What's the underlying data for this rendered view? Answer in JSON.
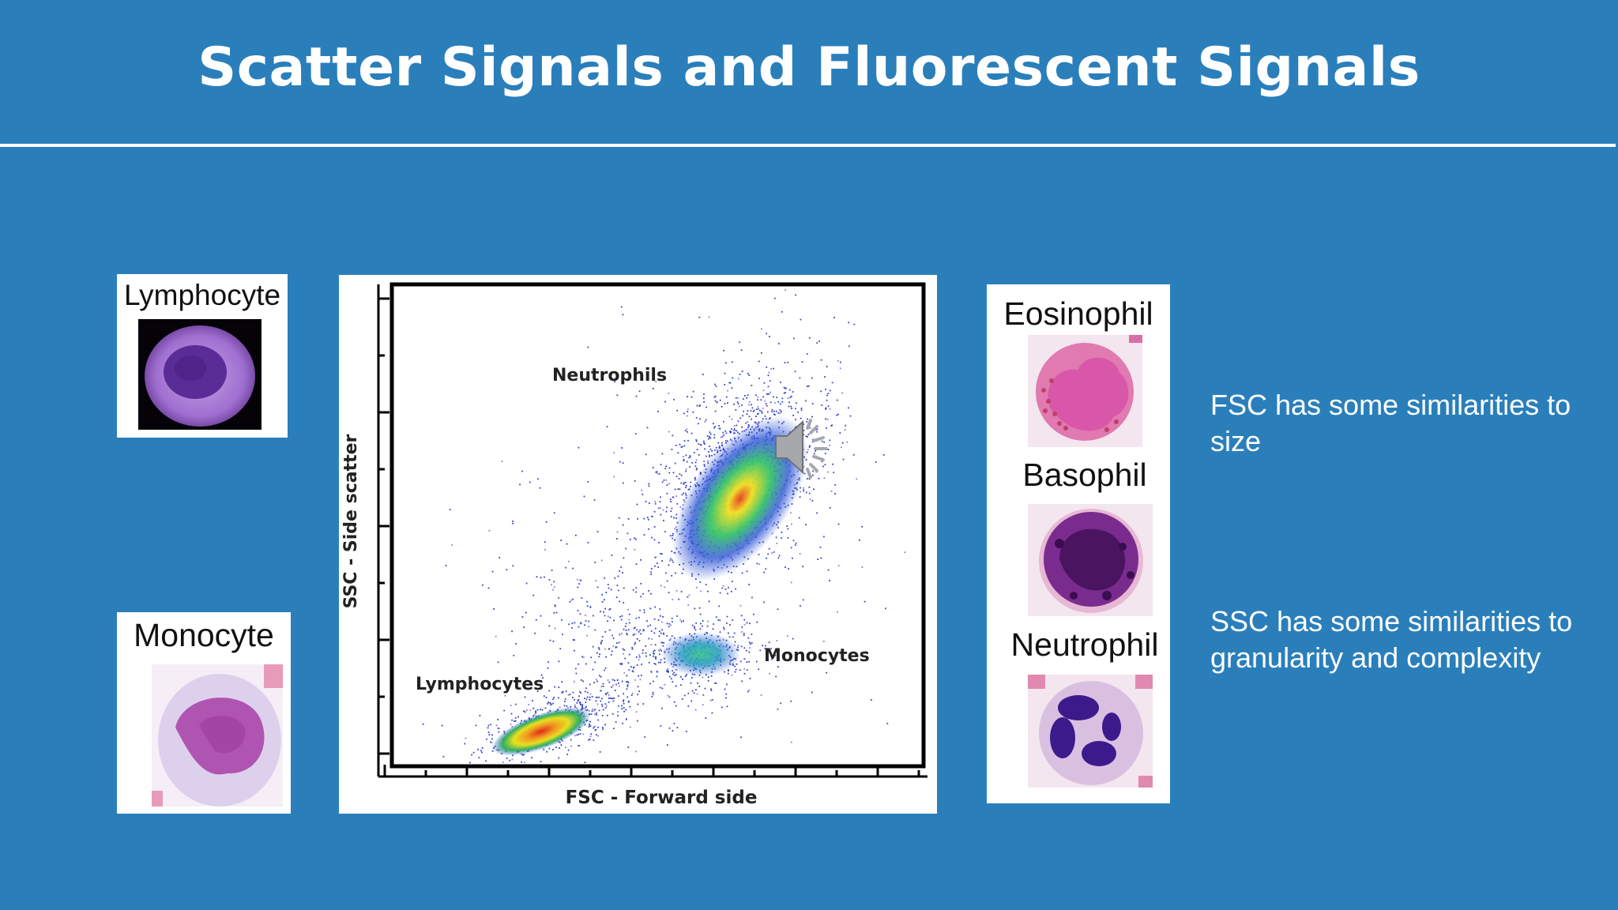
{
  "slide": {
    "title": "Scatter Signals and Fluorescent Signals"
  },
  "cells": {
    "lymphocyte": "Lymphocyte",
    "monocyte": "Monocyte",
    "eosinophil": "Eosinophil",
    "basophil": "Basophil",
    "neutrophil": "Neutrophil"
  },
  "plot": {
    "xlabel": "FSC - Forward side",
    "ylabel": "SSC - Side scatter",
    "populations": {
      "neutrophils": "Neutrophils",
      "monocytes": "Monocytes",
      "lymphocytes": "Lymphocytes"
    }
  },
  "notes": {
    "fsc_line1": "FSC has some similarities to",
    "fsc_line2": "size",
    "ssc_line1": "SSC has some similarities to",
    "ssc_line2": "granularity and complexity"
  },
  "icons": {
    "audio": "speaker-icon"
  },
  "colors": {
    "background": "#2a7fbb",
    "text": "#ffffff"
  }
}
